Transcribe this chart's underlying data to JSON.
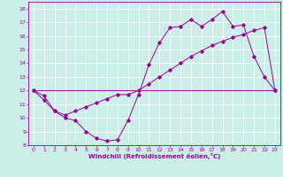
{
  "xlabel": "Windchill (Refroidissement éolien,°C)",
  "bg_color": "#cceee8",
  "line_color": "#990099",
  "grid_color": "#ffffff",
  "xlim": [
    -0.5,
    23.5
  ],
  "ylim": [
    8,
    18.5
  ],
  "xticks": [
    0,
    1,
    2,
    3,
    4,
    5,
    6,
    7,
    8,
    9,
    10,
    11,
    12,
    13,
    14,
    15,
    16,
    17,
    18,
    19,
    20,
    21,
    22,
    23
  ],
  "yticks": [
    8,
    9,
    10,
    11,
    12,
    13,
    14,
    15,
    16,
    17,
    18
  ],
  "line1_x": [
    0,
    1,
    2,
    3,
    4,
    5,
    6,
    7,
    8,
    9,
    10,
    11,
    12,
    13,
    14,
    15,
    16,
    17,
    18,
    19,
    20,
    21,
    22,
    23
  ],
  "line1_y": [
    12.0,
    11.6,
    10.5,
    10.0,
    9.8,
    9.0,
    8.5,
    8.3,
    8.4,
    9.8,
    11.7,
    13.9,
    15.5,
    16.6,
    16.7,
    17.2,
    16.7,
    17.2,
    17.8,
    16.7,
    16.8,
    14.5,
    13.0,
    12.0
  ],
  "line2_x": [
    0,
    1,
    2,
    3,
    4,
    5,
    6,
    7,
    8,
    9,
    10,
    11,
    12,
    13,
    14,
    15,
    16,
    17,
    18,
    19,
    20,
    21,
    22,
    23
  ],
  "line2_y": [
    12.0,
    11.3,
    10.5,
    10.2,
    10.5,
    10.8,
    11.1,
    11.4,
    11.7,
    11.7,
    12.0,
    12.5,
    13.0,
    13.5,
    14.0,
    14.5,
    14.9,
    15.3,
    15.6,
    15.9,
    16.1,
    16.4,
    16.6,
    12.0
  ],
  "line3_x": [
    0,
    23
  ],
  "line3_y": [
    12.0,
    12.0
  ]
}
